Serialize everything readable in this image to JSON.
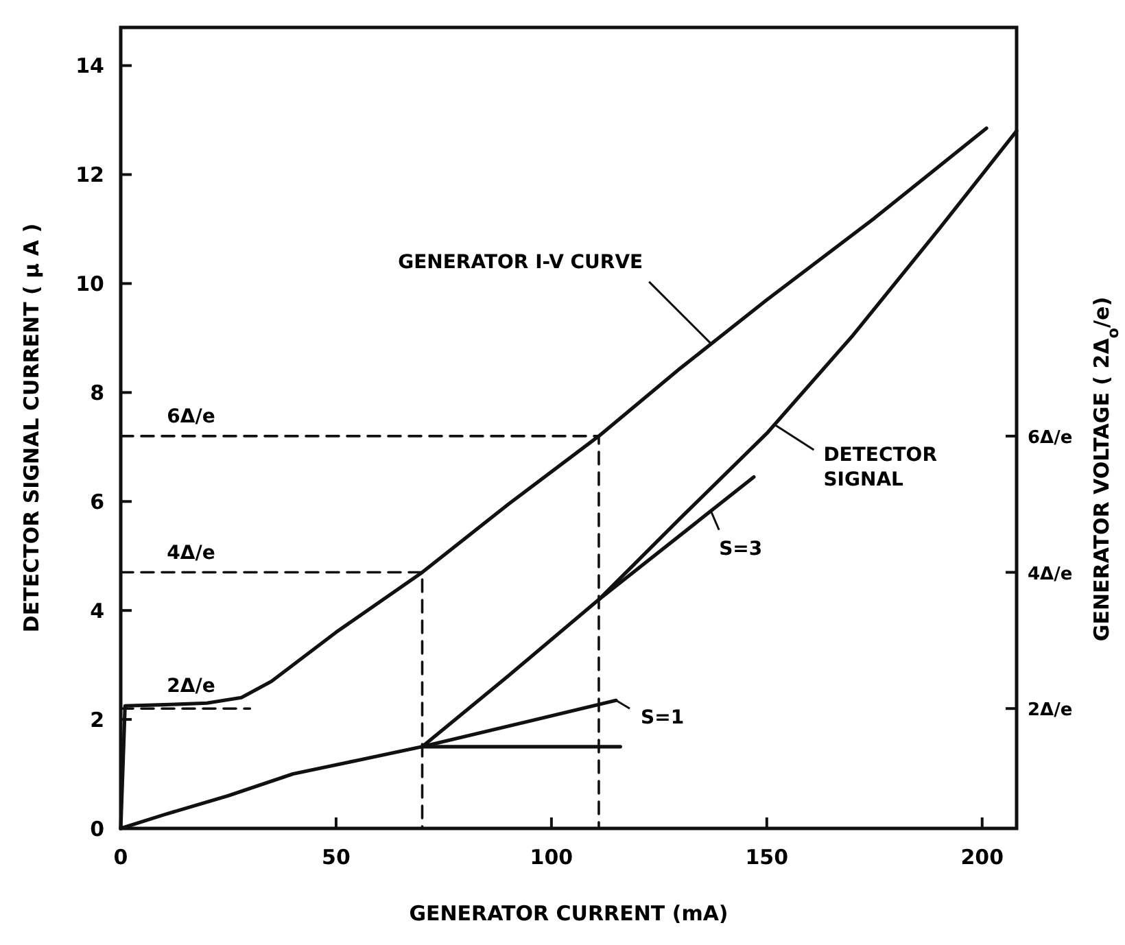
{
  "chart_data": {
    "type": "line",
    "xlabel": "GENERATOR  CURRENT  (mA)",
    "ylabel": "DETECTOR  SIGNAL  CURRENT  ( μ A )",
    "y2label": "GENERATOR  VOLTAGE  ( 2Δ$_{o}$/e)",
    "xlim": [
      0,
      208
    ],
    "xticks": [
      0,
      50,
      100,
      150,
      200
    ],
    "ylim": [
      0,
      14.7
    ],
    "yticks": [
      0,
      2,
      4,
      6,
      8,
      10,
      12,
      14
    ],
    "grid": false,
    "marker": "none",
    "series": [
      {
        "color": "#111111",
        "x": [
          0,
          1,
          10,
          20,
          28,
          35,
          50,
          70,
          90,
          111,
          130,
          150,
          175,
          201
        ],
        "values": [
          0,
          2.25,
          2.27,
          2.3,
          2.4,
          2.7,
          3.6,
          4.7,
          5.95,
          7.2,
          8.45,
          9.7,
          11.2,
          12.85
        ]
      },
      {
        "color": "#111111",
        "x": [
          0,
          10,
          25,
          40,
          55,
          70,
          90,
          111,
          130,
          150,
          170,
          190,
          208
        ],
        "values": [
          0,
          0.25,
          0.6,
          1.0,
          1.25,
          1.5,
          2.8,
          4.2,
          5.7,
          7.25,
          9.05,
          11.0,
          12.8
        ]
      },
      {
        "color": "#111111",
        "x": [
          70,
          115
        ],
        "values": [
          1.5,
          2.35
        ]
      },
      {
        "color": "#111111",
        "x": [
          70,
          116
        ],
        "values": [
          1.5,
          1.5
        ]
      },
      {
        "color": "#111111",
        "x": [
          111,
          147
        ],
        "values": [
          4.2,
          6.45
        ]
      },
      {
        "color": "#111111",
        "line_style": "dashed",
        "x": [
          0,
          30
        ],
        "values": [
          2.2,
          2.2
        ]
      },
      {
        "color": "#111111",
        "line_style": "dashed",
        "x": [
          0,
          70,
          70
        ],
        "values": [
          4.7,
          4.7,
          0
        ]
      },
      {
        "color": "#111111",
        "line_style": "dashed",
        "x": [
          0,
          111,
          111
        ],
        "values": [
          7.2,
          7.2,
          0
        ]
      }
    ],
    "annotations": [
      {
        "text": "GENERATOR I-V CURVE",
        "x": 137,
        "y": 8.9
      },
      {
        "text": "DETECTOR\nSIGNAL",
        "x": 152,
        "y": 7.4
      },
      {
        "text": "2Δ/e",
        "x": 12,
        "y": 2.2
      },
      {
        "text": "4Δ/e",
        "x": 12,
        "y": 4.7
      },
      {
        "text": "6Δ/e",
        "x": 12,
        "y": 7.2
      },
      {
        "text": "S=1",
        "x": 115,
        "y": 2.35
      },
      {
        "text": "S=3",
        "x": 137,
        "y": 5.83
      },
      "2Δ/e",
      "4Δ/e",
      "6Δ/e"
    ]
  }
}
